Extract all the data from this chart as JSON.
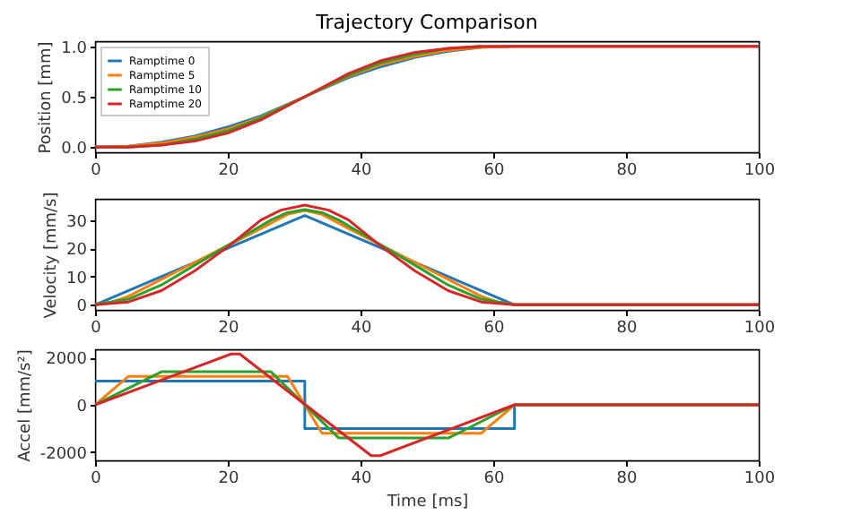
{
  "chart_data": [
    {
      "type": "line",
      "title": "Trajectory Comparison",
      "ylabel": "Position [mm]",
      "xlim": [
        0,
        100
      ],
      "xticks": [
        0,
        20,
        40,
        60,
        80,
        100
      ],
      "ylim": [
        -0.05,
        1.05
      ],
      "yticks": [
        {
          "value": 0,
          "label": "0.0"
        },
        {
          "value": 0.5,
          "label": "0.5"
        },
        {
          "value": 1,
          "label": "1.0"
        }
      ],
      "legend": "top left",
      "grid": false,
      "x": [
        0,
        5,
        10,
        15,
        20,
        25,
        31.6,
        38.2,
        43.2,
        48.2,
        53.2,
        58.2,
        63.2,
        100
      ],
      "series": [
        {
          "name": "Ramptime 0",
          "color": "#1f77b4",
          "values": [
            0,
            0.01,
            0.05,
            0.11,
            0.2,
            0.31,
            0.5,
            0.69,
            0.8,
            0.89,
            0.95,
            0.99,
            1,
            1
          ]
        },
        {
          "name": "Ramptime 5",
          "color": "#ff7f0e",
          "values": [
            0,
            0.01,
            0.04,
            0.1,
            0.18,
            0.3,
            0.5,
            0.7,
            0.82,
            0.9,
            0.96,
            0.99,
            1,
            1
          ]
        },
        {
          "name": "Ramptime 10",
          "color": "#2ca02c",
          "values": [
            0,
            0,
            0.02,
            0.08,
            0.16,
            0.29,
            0.5,
            0.71,
            0.84,
            0.92,
            0.98,
            1,
            null,
            null
          ]
        },
        {
          "name": "Ramptime 20",
          "color": "#d62728",
          "values": [
            0,
            0,
            0.02,
            0.06,
            0.14,
            0.27,
            0.5,
            0.73,
            0.86,
            0.94,
            0.98,
            1,
            1,
            1
          ]
        }
      ]
    },
    {
      "type": "line",
      "ylabel": "Velocity [mm/s]",
      "xlim": [
        0,
        100
      ],
      "xticks": [
        0,
        20,
        40,
        60,
        80,
        100
      ],
      "ylim": [
        -1.8,
        37.5
      ],
      "yticks": [
        0,
        10,
        20,
        30
      ],
      "grid": false,
      "series": [
        {
          "color": "#1f77b4",
          "x": [
            0,
            31.6,
            63.2,
            100
          ],
          "values": [
            0,
            31.6,
            0,
            0
          ]
        },
        {
          "color": "#ff7f0e",
          "x": [
            0,
            2.5,
            5,
            10,
            15,
            20,
            25,
            29,
            31.6,
            34.2,
            38.2,
            43.2,
            48.2,
            53.2,
            58.2,
            60.7,
            63.2,
            100
          ],
          "values": [
            0,
            1,
            3,
            9,
            15,
            21,
            27,
            32,
            33.4,
            32,
            27,
            21,
            15,
            9,
            3,
            1,
            0,
            0
          ]
        },
        {
          "color": "#2ca02c",
          "x": [
            0,
            5,
            10,
            15,
            20,
            26.5,
            29,
            31.6,
            34.2,
            36.7,
            43.2,
            48.2,
            53.2,
            58.2,
            63.2,
            100
          ],
          "values": [
            0,
            2,
            7,
            14,
            21,
            30,
            32.6,
            33.7,
            32.6,
            30,
            21,
            14,
            7,
            2,
            0,
            0
          ]
        },
        {
          "color": "#d62728",
          "x": [
            0,
            5,
            10,
            15,
            20,
            25,
            28,
            31.6,
            35.2,
            38.2,
            43.2,
            48.2,
            53.2,
            58.2,
            63.2,
            100
          ],
          "values": [
            0,
            1,
            5,
            12,
            20.5,
            30,
            33.5,
            35.3,
            33.5,
            30,
            20.5,
            12,
            5,
            1,
            0,
            0
          ]
        }
      ]
    },
    {
      "type": "line",
      "ylabel": "Accel [mm/s²]",
      "xlabel": "Time [ms]",
      "xlim": [
        0,
        100
      ],
      "xticks": [
        0,
        20,
        40,
        60,
        80,
        100
      ],
      "ylim": [
        -2350,
        2350
      ],
      "yticks": [
        -2000,
        0,
        2000
      ],
      "grid": false,
      "series": [
        {
          "color": "#1f77b4",
          "x": [
            0,
            31.6,
            31.6,
            63.2,
            63.2,
            100
          ],
          "values": [
            1000,
            1000,
            -1000,
            -1000,
            0,
            0
          ]
        },
        {
          "color": "#ff7f0e",
          "x": [
            0,
            5,
            29,
            34.2,
            58.2,
            63.2,
            100
          ],
          "values": [
            0,
            1200,
            1200,
            -1200,
            -1200,
            0,
            0
          ]
        },
        {
          "color": "#2ca02c",
          "x": [
            0,
            10,
            26.5,
            36.7,
            53.3,
            63.2,
            100
          ],
          "values": [
            0,
            1400,
            1400,
            -1400,
            -1400,
            0,
            0
          ]
        },
        {
          "color": "#d62728",
          "x": [
            0,
            20.5,
            21.8,
            41.6,
            43,
            63.2,
            100
          ],
          "values": [
            0,
            2150,
            2150,
            -2150,
            -2150,
            0,
            0
          ]
        }
      ]
    }
  ]
}
